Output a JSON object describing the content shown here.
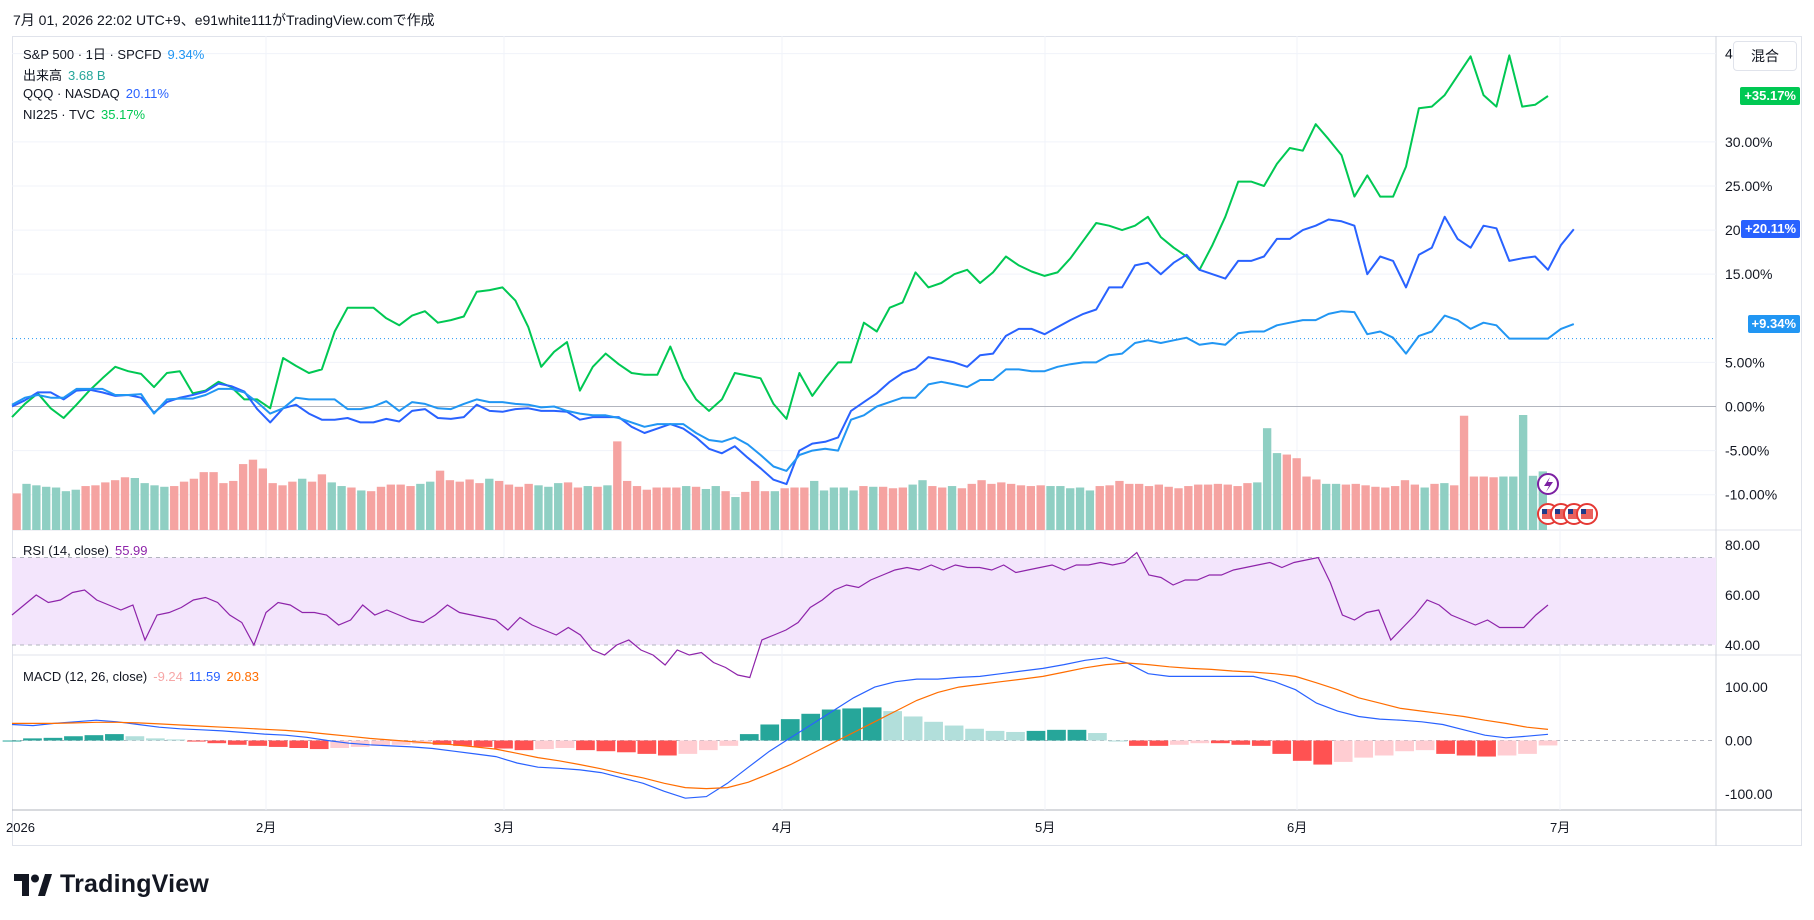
{
  "header": {
    "text": "7月 01, 2026 22:02 UTC+9、e91white111がTradingView.comで作成"
  },
  "mix_button": {
    "label": "混合"
  },
  "logo": {
    "text": "TradingView"
  },
  "legend": {
    "main": {
      "label": "S&P 500 · 1日 · SPCFD",
      "value": "9.34%"
    },
    "volume": {
      "label": "出来高",
      "value": "3.68 B"
    },
    "qqq": {
      "label": "QQQ · NASDAQ",
      "value": "20.11%"
    },
    "ni225": {
      "label": "NI225 · TVC",
      "value": "35.17%"
    },
    "rsi": {
      "label": "RSI (14, close)",
      "value": "55.99"
    },
    "macd": {
      "label": "MACD (12, 26, close)",
      "values": [
        "-9.24",
        "11.59",
        "20.83"
      ]
    }
  },
  "colors": {
    "spx": "#2196f3",
    "qqq": "#2962ff",
    "ni225": "#00c853",
    "vol_up": "#8fcfc3",
    "vol_down": "#f5a3a1",
    "rsi": "#8e24aa",
    "rsi_band": "#f3e5fc",
    "macd": "#2962ff",
    "signal": "#ff6d00",
    "hist_up_strong": "#26a69a",
    "hist_up_weak": "#b2dfdb",
    "hist_down_strong": "#ff5252",
    "hist_down_weak": "#ffcdd2"
  },
  "chart_data": [
    {
      "type": "line",
      "title": "",
      "x_ticks": [
        "2026",
        "2月",
        "3月",
        "4月",
        "5月",
        "6月",
        "7月"
      ],
      "y_ticks": [
        "40.00%",
        "30.00%",
        "25.00%",
        "20.00%",
        "15.00%",
        "5.00%",
        "0.00%",
        "-5.00%",
        "-10.00%"
      ],
      "ylim": [
        -14,
        42
      ],
      "price_tags": [
        {
          "series": "NI225",
          "text": "+35.17%",
          "value": 35.17
        },
        {
          "series": "QQQ",
          "text": "+20.11%",
          "value": 20.11
        },
        {
          "series": "S&P 500",
          "text": "+9.34%",
          "value": 9.34
        }
      ],
      "series": [
        {
          "name": "NI225",
          "values": [
            -1.2,
            0.3,
            1.5,
            -0.2,
            -1.3,
            0.2,
            1.8,
            3.2,
            4.5,
            4.0,
            3.7,
            2.2,
            3.8,
            4.0,
            1.5,
            1.8,
            2.8,
            2.2,
            0.8,
            0.8,
            -0.2,
            5.5,
            4.6,
            3.8,
            4.2,
            8.5,
            11.2,
            11.2,
            11.2,
            10.0,
            9.2,
            10.3,
            10.8,
            9.5,
            9.8,
            10.2,
            13.0,
            13.2,
            13.5,
            12.0,
            9.0,
            4.5,
            6.2,
            7.3,
            1.8,
            4.5,
            6.0,
            4.8,
            3.8,
            3.6,
            3.6,
            6.8,
            3.2,
            0.8,
            -0.5,
            0.8,
            3.8,
            3.5,
            3.2,
            0.3,
            -1.4,
            3.8,
            1.2,
            3.2,
            5.0,
            5.0,
            9.5,
            8.5,
            11.2,
            11.8,
            15.2,
            13.5,
            14.0,
            15.0,
            15.5,
            14.0,
            15.2,
            17.0,
            16.0,
            15.3,
            14.8,
            15.2,
            16.8,
            18.8,
            20.8,
            20.5,
            20.0,
            20.5,
            21.5,
            19.2,
            18.0,
            17.0,
            15.5,
            18.3,
            21.5,
            25.5,
            25.5,
            25.0,
            27.5,
            29.3,
            29.0,
            32.0,
            30.3,
            28.5,
            23.8,
            26.2,
            23.8,
            23.8,
            27.2,
            33.8,
            34.0,
            35.3,
            37.5,
            39.7,
            35.3,
            34.0,
            39.8,
            34.0,
            34.2,
            35.2
          ]
        },
        {
          "name": "QQQ",
          "values": [
            0.0,
            0.7,
            1.6,
            1.6,
            0.8,
            1.8,
            1.9,
            1.6,
            1.2,
            1.3,
            1.0,
            -0.7,
            0.5,
            1.0,
            1.3,
            1.7,
            2.6,
            2.3,
            1.7,
            -0.3,
            -1.8,
            -0.2,
            0.2,
            -0.8,
            -1.5,
            -1.5,
            -1.3,
            -1.8,
            -1.8,
            -1.4,
            -1.7,
            -0.5,
            -0.3,
            -1.3,
            -1.4,
            -1.2,
            0.2,
            -0.5,
            -0.6,
            -0.3,
            -0.2,
            -0.5,
            -0.5,
            -0.6,
            -1.5,
            -1.2,
            -1.2,
            -1.2,
            -2.3,
            -3.0,
            -2.5,
            -2.0,
            -2.5,
            -3.5,
            -4.8,
            -5.3,
            -4.5,
            -5.8,
            -7.0,
            -8.3,
            -8.8,
            -5.0,
            -4.2,
            -4.0,
            -3.5,
            -0.5,
            0.5,
            1.5,
            2.8,
            3.8,
            4.3,
            5.6,
            5.3,
            5.0,
            4.5,
            5.8,
            6.0,
            8.0,
            8.8,
            8.8,
            8.2,
            9.0,
            9.8,
            10.5,
            11.0,
            13.5,
            13.5,
            16.0,
            16.3,
            15.0,
            16.3,
            17.2,
            15.5,
            15.0,
            14.5,
            16.5,
            16.5,
            17.0,
            19.0,
            19.0,
            20.0,
            20.5,
            21.2,
            21.0,
            20.5,
            15.0,
            17.0,
            16.5,
            13.5,
            17.2,
            18.0,
            21.5,
            19.0,
            18.0,
            20.5,
            20.2,
            16.5,
            16.8,
            17.0,
            15.5,
            18.3,
            20.1
          ]
        },
        {
          "name": "S&P 500",
          "values": [
            0.2,
            1.0,
            1.3,
            1.0,
            1.0,
            2.0,
            2.0,
            2.0,
            1.3,
            1.3,
            1.4,
            -0.8,
            0.8,
            0.9,
            0.9,
            1.3,
            2.0,
            2.0,
            1.6,
            0.5,
            -0.8,
            -0.2,
            1.0,
            0.8,
            0.8,
            0.8,
            -0.3,
            -0.3,
            0.0,
            0.6,
            -0.5,
            0.5,
            0.3,
            -0.2,
            -0.3,
            0.3,
            0.8,
            0.5,
            0.5,
            0.3,
            0.2,
            -0.1,
            0.0,
            -0.5,
            -0.8,
            -1.0,
            -1.0,
            -1.3,
            -1.8,
            -2.3,
            -2.0,
            -2.0,
            -2.0,
            -3.0,
            -3.8,
            -4.0,
            -3.5,
            -4.3,
            -5.5,
            -6.8,
            -7.3,
            -5.5,
            -5.0,
            -4.8,
            -5.0,
            -1.5,
            -1.0,
            0.0,
            0.5,
            1.0,
            1.0,
            2.5,
            2.8,
            2.5,
            2.2,
            3.0,
            3.0,
            4.2,
            4.2,
            4.0,
            4.0,
            4.5,
            4.8,
            5.0,
            5.0,
            5.8,
            6.0,
            7.2,
            7.5,
            7.2,
            7.5,
            7.8,
            7.0,
            7.2,
            7.0,
            8.3,
            8.5,
            8.5,
            9.2,
            9.5,
            9.8,
            9.8,
            10.5,
            10.8,
            10.7,
            8.2,
            8.5,
            7.8,
            6.0,
            8.0,
            8.5,
            10.3,
            9.8,
            8.8,
            9.5,
            9.2,
            7.7,
            7.7,
            7.7,
            7.7,
            8.8,
            9.34
          ]
        }
      ]
    },
    {
      "type": "bar",
      "title": "出来高",
      "down_indices": [
        0,
        7,
        8,
        9,
        10,
        11,
        16,
        17,
        18,
        19,
        20,
        21,
        22,
        23,
        24,
        25,
        26,
        27,
        28,
        30,
        31,
        34,
        36,
        37,
        38,
        39,
        40,
        43,
        44,
        45,
        46,
        47,
        49,
        50,
        51,
        52,
        56,
        57,
        59,
        61,
        62,
        63,
        64,
        65,
        66,
        67,
        69,
        72,
        74,
        75,
        76,
        78,
        79,
        80,
        86,
        88,
        89,
        90,
        93,
        94,
        96,
        97,
        98,
        99,
        100,
        101,
        102,
        103,
        104,
        110,
        111,
        112,
        113,
        114,
        115,
        116,
        117,
        118,
        119,
        120,
        121,
        122,
        123,
        124,
        125,
        129,
        130,
        131,
        132,
        135,
        136,
        137,
        138,
        139,
        140,
        141,
        142,
        144,
        146,
        147,
        148,
        149,
        150
      ],
      "values": [
        0.5,
        0.63,
        0.61,
        0.59,
        0.58,
        0.53,
        0.55,
        0.6,
        0.61,
        0.65,
        0.68,
        0.72,
        0.71,
        0.64,
        0.61,
        0.59,
        0.6,
        0.66,
        0.7,
        0.79,
        0.79,
        0.64,
        0.67,
        0.9,
        0.96,
        0.84,
        0.64,
        0.61,
        0.66,
        0.7,
        0.66,
        0.76,
        0.65,
        0.6,
        0.58,
        0.54,
        0.53,
        0.59,
        0.62,
        0.62,
        0.6,
        0.63,
        0.66,
        0.81,
        0.68,
        0.66,
        0.69,
        0.64,
        0.7,
        0.67,
        0.62,
        0.59,
        0.63,
        0.61,
        0.59,
        0.64,
        0.65,
        0.58,
        0.6,
        0.59,
        0.61,
        1.21,
        0.67,
        0.6,
        0.55,
        0.58,
        0.58,
        0.58,
        0.6,
        0.59,
        0.56,
        0.6,
        0.53,
        0.45,
        0.52,
        0.67,
        0.53,
        0.53,
        0.57,
        0.58,
        0.58,
        0.67,
        0.54,
        0.58,
        0.58,
        0.54,
        0.6,
        0.59,
        0.59,
        0.57,
        0.58,
        0.62,
        0.68,
        0.6,
        0.58,
        0.6,
        0.57,
        0.63,
        0.68,
        0.63,
        0.65,
        0.63,
        0.61,
        0.6,
        0.61,
        0.6,
        0.6,
        0.57,
        0.58,
        0.54,
        0.6,
        0.61,
        0.67,
        0.63,
        0.63,
        0.6,
        0.62,
        0.59,
        0.57,
        0.6,
        0.62,
        0.62,
        0.63,
        0.62,
        0.6,
        0.64,
        0.65,
        1.39,
        1.05,
        1.03,
        0.98,
        0.73,
        0.69,
        0.63,
        0.63,
        0.62,
        0.63,
        0.61,
        0.59,
        0.58,
        0.6,
        0.68,
        0.62,
        0.58,
        0.63,
        0.64,
        0.61,
        1.56,
        0.73,
        0.73,
        0.72,
        0.73,
        0.73,
        1.57,
        0.74,
        0.8
      ]
    },
    {
      "type": "line",
      "title": "RSI (14, close)",
      "y_ticks": [
        "80.00",
        "60.00",
        "40.00"
      ],
      "ylim": [
        36,
        86
      ],
      "band": [
        40,
        75
      ],
      "values": [
        52,
        56,
        60,
        57,
        58,
        61,
        62,
        58,
        56,
        54,
        56,
        42,
        52,
        53,
        55,
        58,
        59,
        57,
        52,
        49,
        40,
        53,
        57,
        56,
        53,
        53,
        52,
        48,
        50,
        56,
        52,
        54,
        52,
        50,
        49,
        52,
        56,
        53,
        52,
        51,
        50,
        46,
        51,
        48,
        46,
        44,
        47,
        44,
        38,
        36,
        40,
        42,
        38,
        36,
        32,
        38,
        36,
        37,
        33,
        31,
        28,
        27,
        42,
        44,
        46,
        49,
        55,
        58,
        62,
        64,
        63,
        66,
        68,
        70,
        71,
        70,
        72,
        70,
        72,
        71,
        71,
        70,
        72,
        69,
        70,
        71,
        72,
        70,
        72,
        72,
        73,
        72,
        73,
        77,
        68,
        67,
        64,
        66,
        66,
        68,
        68,
        70,
        71,
        72,
        73,
        71,
        73,
        74,
        75,
        65,
        52,
        50,
        53,
        54,
        42,
        47,
        52,
        58,
        56,
        52,
        50,
        48,
        50,
        47,
        47,
        47,
        52,
        55.99
      ]
    },
    {
      "type": "line",
      "title": "MACD (12, 26, close)",
      "y_ticks": [
        "100.00",
        "0.00",
        "-100.00"
      ],
      "ylim": [
        -130,
        160
      ],
      "macd": [
        30,
        28,
        32,
        35,
        38,
        35,
        30,
        25,
        22,
        20,
        18,
        15,
        12,
        10,
        6,
        0,
        -5,
        -8,
        -10,
        -12,
        -15,
        -20,
        -25,
        -30,
        -42,
        -50,
        -52,
        -55,
        -60,
        -70,
        -80,
        -95,
        -108,
        -105,
        -80,
        -50,
        -20,
        5,
        30,
        55,
        80,
        100,
        110,
        115,
        115,
        118,
        120,
        125,
        130,
        135,
        142,
        150,
        155,
        145,
        125,
        120,
        120,
        120,
        120,
        120,
        110,
        95,
        70,
        55,
        45,
        40,
        38,
        35,
        30,
        20,
        10,
        5,
        8,
        11.59
      ],
      "signal": [
        32,
        32,
        32,
        33,
        34,
        34,
        33,
        31,
        29,
        27,
        25,
        23,
        21,
        19,
        16,
        12,
        8,
        4,
        1,
        -2,
        -5,
        -8,
        -12,
        -16,
        -24,
        -32,
        -38,
        -45,
        -53,
        -62,
        -70,
        -80,
        -88,
        -90,
        -88,
        -78,
        -62,
        -45,
        -25,
        -5,
        15,
        35,
        55,
        75,
        90,
        100,
        105,
        110,
        115,
        120,
        128,
        136,
        142,
        145,
        142,
        138,
        135,
        133,
        130,
        128,
        125,
        120,
        108,
        95,
        80,
        70,
        60,
        55,
        50,
        45,
        38,
        32,
        25,
        20.83
      ],
      "histogram": [
        0,
        4,
        5,
        8,
        10,
        12,
        8,
        4,
        2,
        -2,
        -5,
        -8,
        -10,
        -12,
        -14,
        -16,
        -14,
        -12,
        -10,
        -8,
        -6,
        -8,
        -10,
        -12,
        -15,
        -18,
        -16,
        -14,
        -18,
        -20,
        -22,
        -25,
        -28,
        -25,
        -18,
        -10,
        12,
        30,
        40,
        50,
        58,
        60,
        62,
        55,
        45,
        35,
        28,
        22,
        18,
        16,
        18,
        20,
        20,
        14,
        0,
        -10,
        -10,
        -8,
        -5,
        -5,
        -8,
        -10,
        -25,
        -38,
        -45,
        -40,
        -32,
        -28,
        -20,
        -18,
        -25,
        -28,
        -30,
        -28,
        -25,
        -9.24
      ]
    }
  ]
}
